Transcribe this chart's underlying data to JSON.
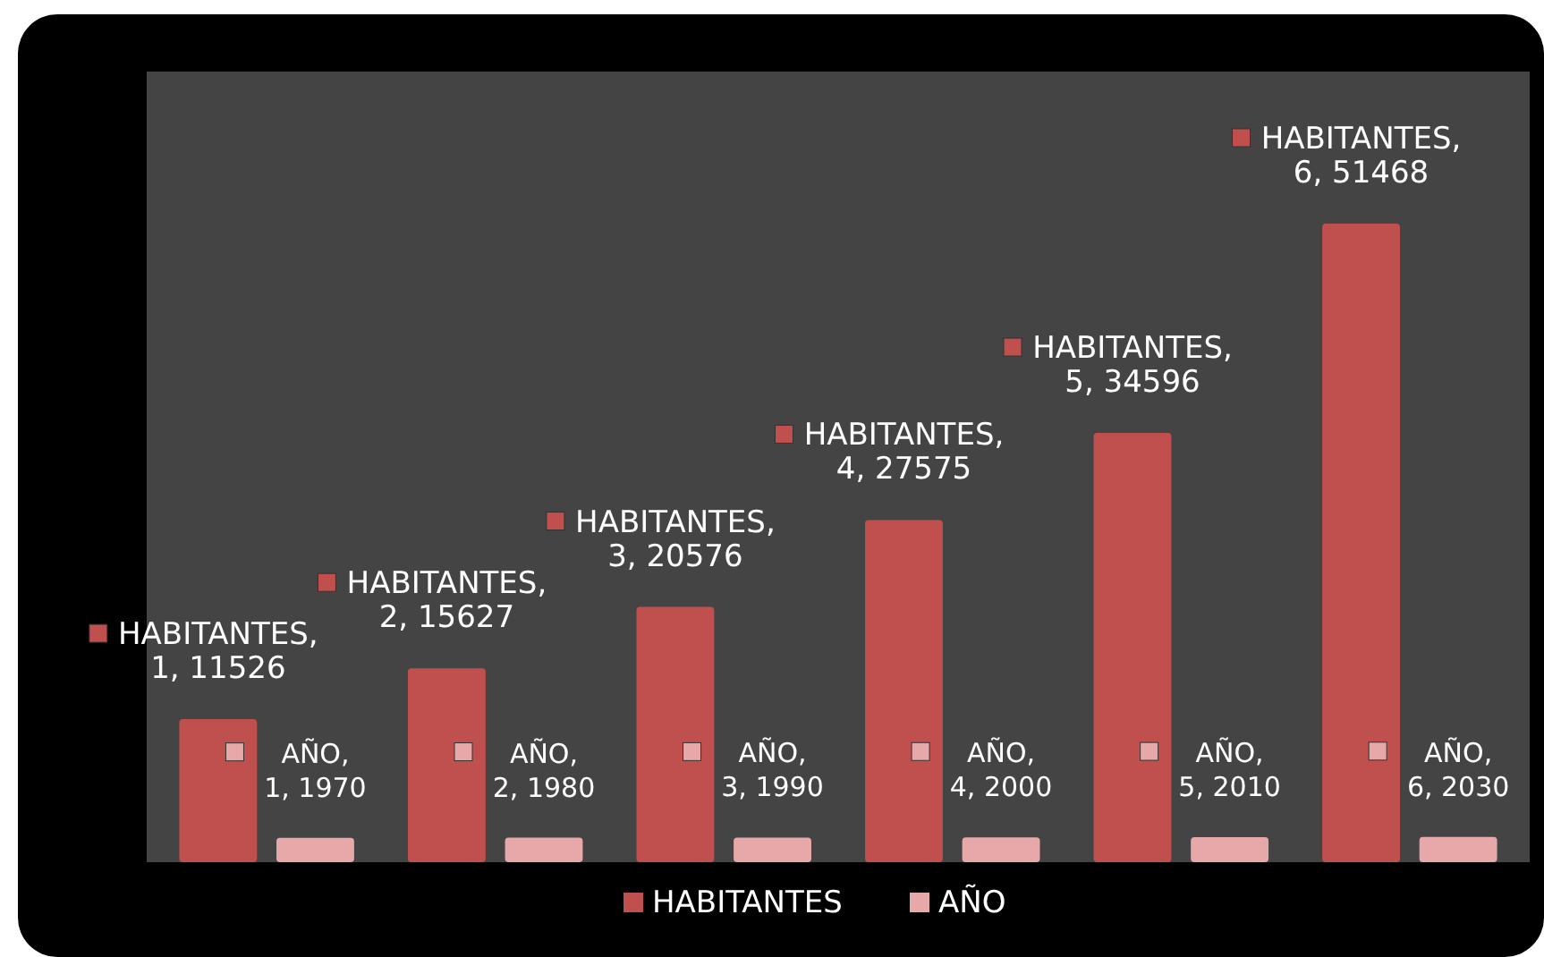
{
  "chart_data": {
    "type": "bar",
    "categories": [
      null,
      null,
      null,
      null,
      null,
      null
    ],
    "series": [
      {
        "name": "HABITANTES",
        "color": "#c0504d",
        "values": [
          11526,
          15627,
          20576,
          27575,
          34596,
          51468
        ],
        "value_labels": [
          "HABITANTES, 1, 11526",
          "HABITANTES, 2, 15627",
          "HABITANTES, 3, 20576",
          "HABITANTES, 4, 27575",
          "HABITANTES, 5, 34596",
          "HABITANTES, 6, 51468"
        ]
      },
      {
        "name": "AÑO",
        "color": "#e6a8a8",
        "values": [
          1970,
          1980,
          1990,
          2000,
          2010,
          2030
        ],
        "value_labels": [
          "AÑO, 1, 1970",
          "AÑO, 2, 1980",
          "AÑO, 3, 1990",
          "AÑO, 4, 2000",
          "AÑO, 5, 2010",
          "AÑO, 6, 2030"
        ]
      }
    ],
    "legend": "bottom"
  }
}
